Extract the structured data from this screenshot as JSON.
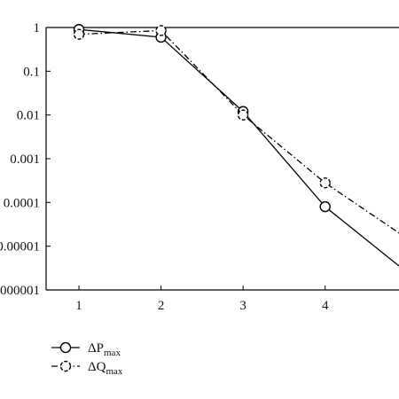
{
  "chart_data": {
    "type": "line",
    "title": "",
    "xlabel": "",
    "ylabel": "",
    "x": [
      1,
      2,
      3,
      4,
      5
    ],
    "x_ticks": [
      "1",
      "2",
      "3",
      "4"
    ],
    "yscale": "log",
    "y_ticks": [
      "1",
      "0.1",
      "0.01",
      "0.001",
      "0.0001",
      "0.00001",
      "0.000001"
    ],
    "xlim": [
      0.6,
      4.9
    ],
    "ylim": [
      1e-06,
      1
    ],
    "grid": false,
    "legend": "bottom-left",
    "series": [
      {
        "name": "ΔP",
        "name_sub": "max",
        "marker": "circle",
        "line_style": "solid",
        "color": "#000000",
        "values": [
          0.9,
          0.6,
          0.012,
          8e-05,
          2.5e-06
        ],
        "marker_count": 4
      },
      {
        "name": "ΔQ",
        "name_sub": "max",
        "marker": "dashed-circle",
        "line_style": "dash-dot",
        "color": "#000000",
        "values": [
          0.7,
          0.85,
          0.01,
          0.00028,
          1.5e-05
        ],
        "marker_count": 4
      }
    ]
  }
}
